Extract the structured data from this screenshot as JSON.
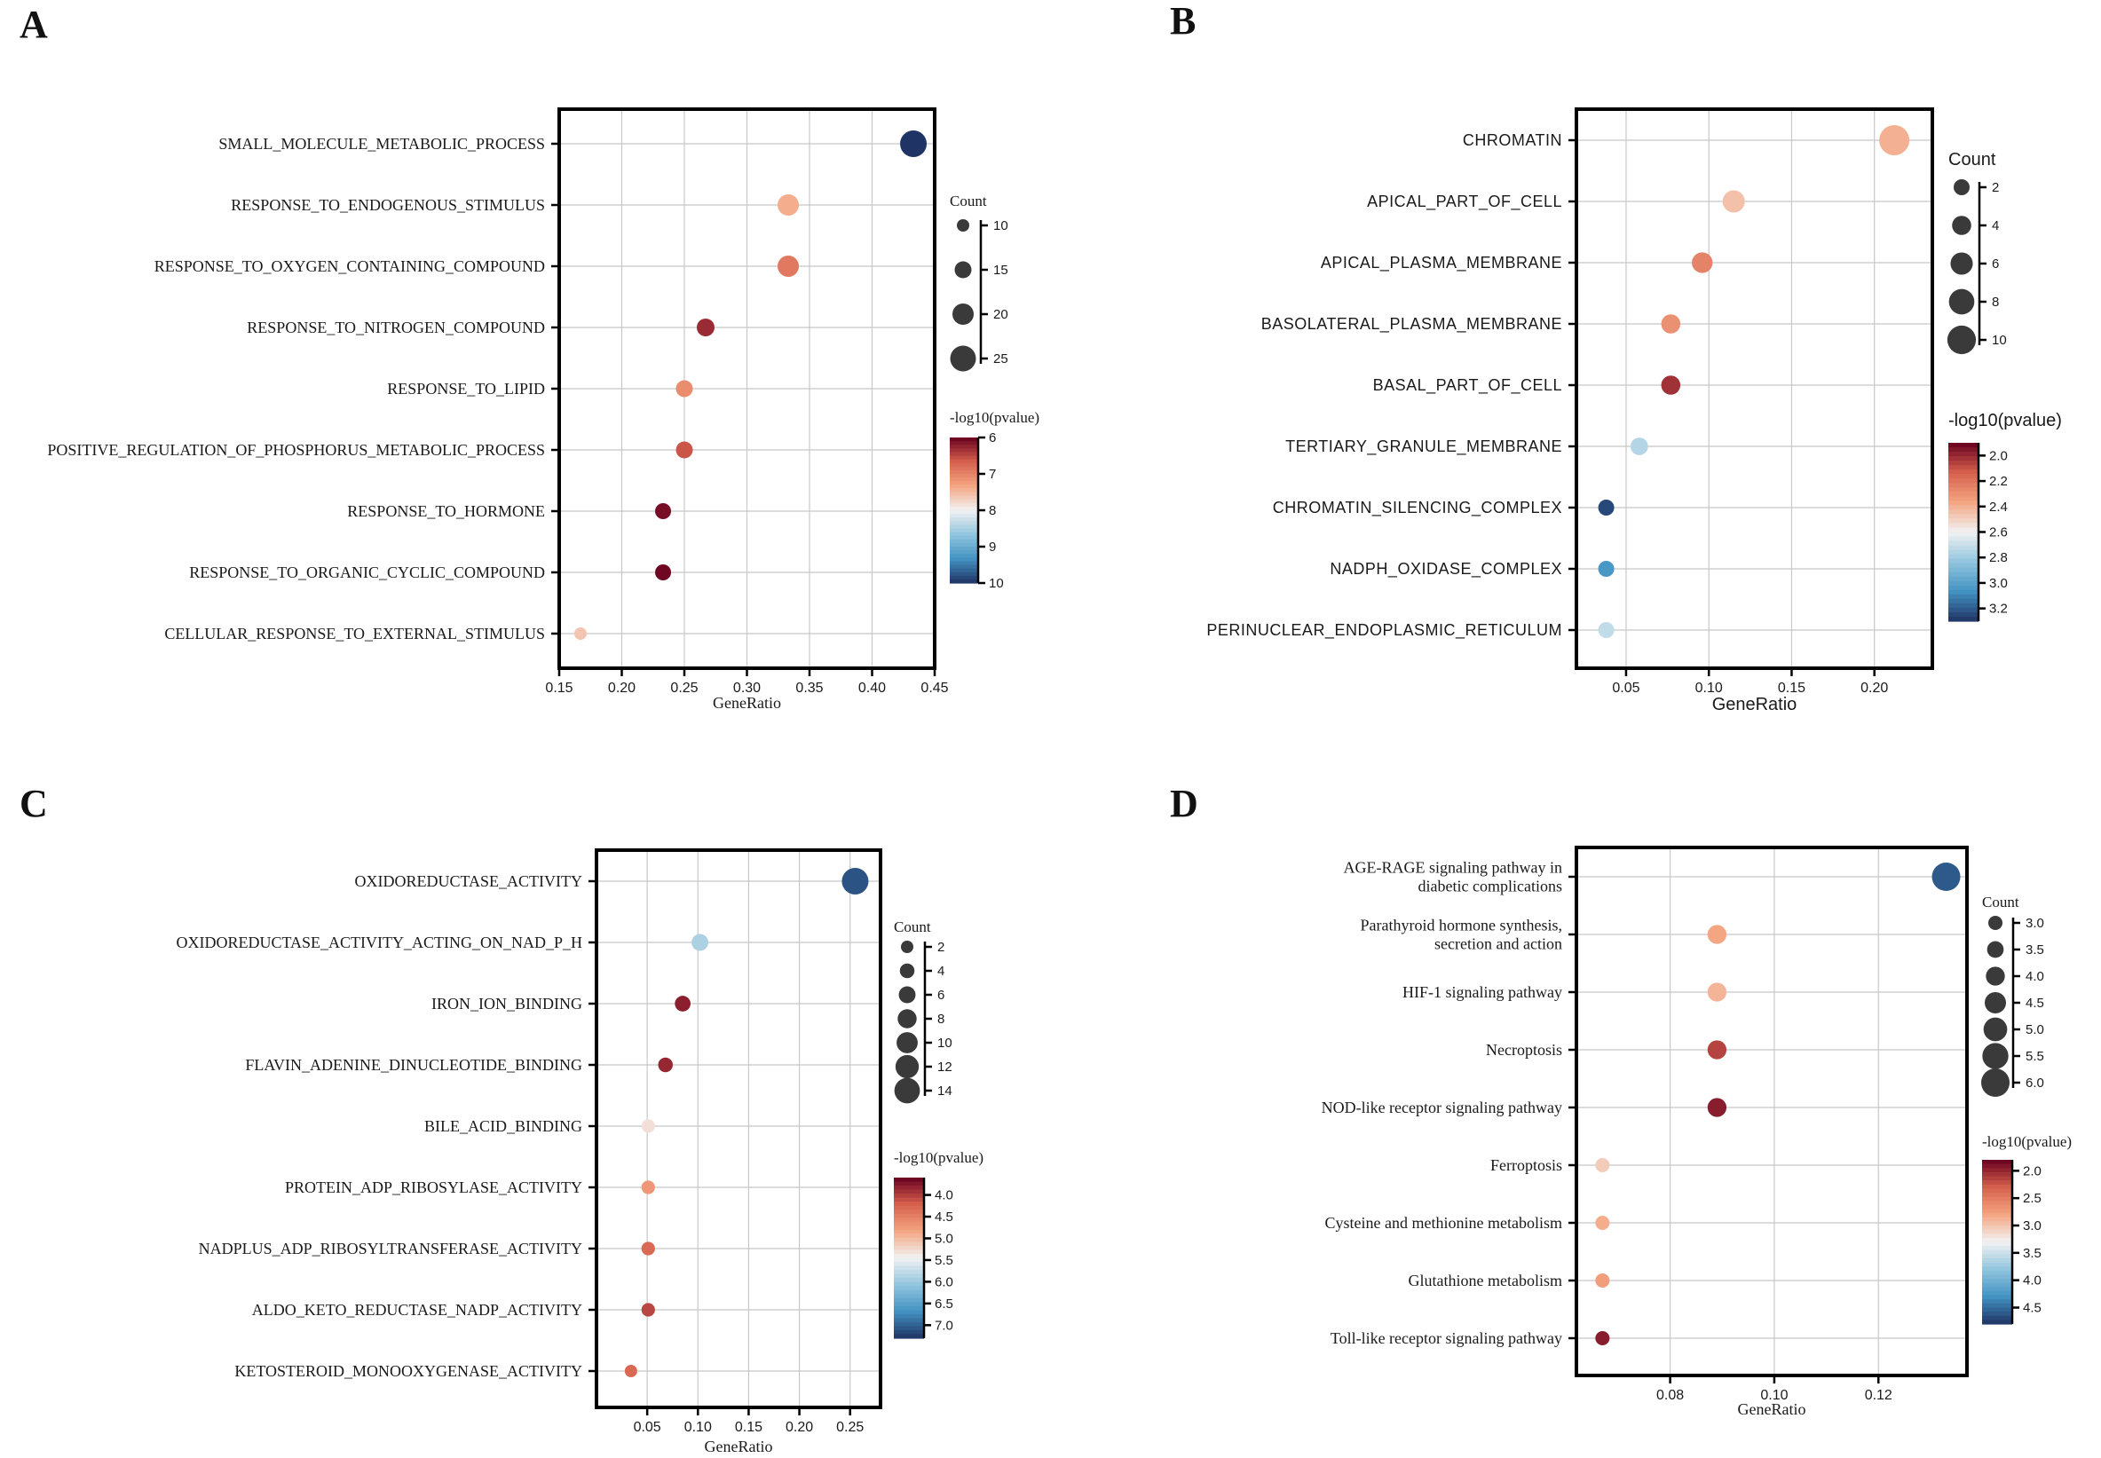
{
  "figure": {
    "panel_labels": [
      "A",
      "B",
      "C",
      "D"
    ]
  },
  "chart_data": [
    {
      "panel": "A",
      "type": "scatter",
      "title": "",
      "xlabel": "GeneRatio",
      "ylabel": "",
      "xlim": [
        0.15,
        0.45
      ],
      "xticks": [
        0.15,
        0.2,
        0.25,
        0.3,
        0.35,
        0.4,
        0.45
      ],
      "xtick_labels": [
        "0.15",
        "0.20",
        "0.25",
        "0.30",
        "0.35",
        "0.40",
        "0.45"
      ],
      "categories": [
        "SMALL_MOLECULE_METABOLIC_PROCESS",
        "RESPONSE_TO_ENDOGENOUS_STIMULUS",
        "RESPONSE_TO_OXYGEN_CONTAINING_COMPOUND",
        "RESPONSE_TO_NITROGEN_COMPOUND",
        "RESPONSE_TO_LIPID",
        "POSITIVE_REGULATION_OF_PHOSPHORUS_METABOLIC_PROCESS",
        "RESPONSE_TO_HORMONE",
        "RESPONSE_TO_ORGANIC_CYCLIC_COMPOUND",
        "CELLULAR_RESPONSE_TO_EXTERNAL_STIMULUS"
      ],
      "gene_ratio": [
        0.433,
        0.333,
        0.333,
        0.267,
        0.25,
        0.25,
        0.233,
        0.233,
        0.167
      ],
      "count": [
        26,
        20,
        20,
        16,
        15,
        15,
        14,
        14,
        10
      ],
      "neg_log10_pvalue": [
        10.2,
        7.4,
        6.9,
        6.3,
        7.1,
        6.6,
        6.1,
        6.05,
        7.6
      ],
      "size_legend": {
        "title": "Count",
        "values": [
          10,
          15,
          20,
          25
        ],
        "labels": [
          "10",
          "15",
          "20",
          "25"
        ]
      },
      "color_legend": {
        "title": "-log10(pvalue)",
        "min": 6,
        "max": 10,
        "ticks": [
          6,
          7,
          8,
          9,
          10
        ],
        "labels": [
          "6",
          "7",
          "8",
          "9",
          "10"
        ]
      }
    },
    {
      "panel": "B",
      "type": "scatter",
      "title": "",
      "xlabel": "GeneRatio",
      "ylabel": "",
      "xlim": [
        0.02,
        0.235
      ],
      "xticks": [
        0.05,
        0.1,
        0.15,
        0.2
      ],
      "xtick_labels": [
        "0.05",
        "0.10",
        "0.15",
        "0.20"
      ],
      "categories": [
        "CHROMATIN",
        "APICAL_PART_OF_CELL",
        "APICAL_PLASMA_MEMBRANE",
        "BASOLATERAL_PLASMA_MEMBRANE",
        "BASAL_PART_OF_CELL",
        "TERTIARY_GRANULE_MEMBRANE",
        "CHROMATIN_SILENCING_COMPLEX",
        "NADPH_OXIDASE_COMPLEX",
        "PERINUCLEAR_ENDOPLASMIC_RETICULUM"
      ],
      "gene_ratio": [
        0.212,
        0.115,
        0.096,
        0.077,
        0.077,
        0.058,
        0.038,
        0.038,
        0.038
      ],
      "count": [
        11,
        6,
        5,
        4,
        4,
        3,
        2,
        2,
        2
      ],
      "neg_log10_pvalue": [
        2.4,
        2.45,
        2.25,
        2.3,
        2.02,
        2.75,
        3.25,
        3.05,
        2.72
      ],
      "size_legend": {
        "title": "Count",
        "values": [
          2,
          4,
          6,
          8,
          10
        ],
        "labels": [
          "2",
          "4",
          "6",
          "8",
          "10"
        ]
      },
      "color_legend": {
        "title": "-log10(pvalue)",
        "min": 1.9,
        "max": 3.3,
        "ticks": [
          2.0,
          2.2,
          2.4,
          2.6,
          2.8,
          3.0,
          3.2
        ],
        "labels": [
          "2.0",
          "2.2",
          "2.4",
          "2.6",
          "2.8",
          "3.0",
          "3.2"
        ]
      }
    },
    {
      "panel": "C",
      "type": "scatter",
      "title": "",
      "xlabel": "GeneRatio",
      "ylabel": "",
      "xlim": [
        0.0,
        0.28
      ],
      "xticks": [
        0.05,
        0.1,
        0.15,
        0.2,
        0.25
      ],
      "xtick_labels": [
        "0.05",
        "0.10",
        "0.15",
        "0.20",
        "0.25"
      ],
      "categories": [
        "OXIDOREDUCTASE_ACTIVITY",
        "OXIDOREDUCTASE_ACTIVITY_ACTING_ON_NAD_P_H",
        "IRON_ION_BINDING",
        "FLAVIN_ADENINE_DINUCLEOTIDE_BINDING",
        "BILE_ACID_BINDING",
        "PROTEIN_ADP_RIBOSYLASE_ACTIVITY",
        "NADPLUS_ADP_RIBOSYLTRANSFERASE_ACTIVITY",
        "ALDO_KETO_REDUCTASE_NADP_ACTIVITY",
        "KETOSTEROID_MONOOXYGENASE_ACTIVITY"
      ],
      "gene_ratio": [
        0.255,
        0.102,
        0.085,
        0.068,
        0.051,
        0.051,
        0.051,
        0.051,
        0.034
      ],
      "count": [
        15,
        6,
        5,
        4,
        3,
        3,
        3,
        3,
        2
      ],
      "neg_log10_pvalue": [
        7.1,
        5.9,
        3.8,
        3.85,
        5.3,
        4.7,
        4.3,
        4.05,
        4.3
      ],
      "size_legend": {
        "title": "Count",
        "values": [
          2,
          4,
          6,
          8,
          10,
          12,
          14
        ],
        "labels": [
          "2",
          "4",
          "6",
          "8",
          "10",
          "12",
          "14"
        ]
      },
      "color_legend": {
        "title": "-log10(pvalue)",
        "min": 3.6,
        "max": 7.3,
        "ticks": [
          4.0,
          4.5,
          5.0,
          5.5,
          6.0,
          6.5,
          7.0
        ],
        "labels": [
          "4.0",
          "4.5",
          "5.0",
          "5.5",
          "6.0",
          "6.5",
          "7.0"
        ]
      }
    },
    {
      "panel": "D",
      "type": "scatter",
      "title": "",
      "xlabel": "GeneRatio",
      "ylabel": "",
      "xlim": [
        0.062,
        0.137
      ],
      "xticks": [
        0.08,
        0.1,
        0.12
      ],
      "xtick_labels": [
        "0.08",
        "0.10",
        "0.12"
      ],
      "categories": [
        [
          "AGE-RAGE signaling pathway in",
          "diabetic complications"
        ],
        [
          "Parathyroid hormone synthesis,",
          "secretion and action"
        ],
        [
          "HIF-1 signaling pathway"
        ],
        [
          "Necroptosis"
        ],
        [
          "NOD-like receptor signaling pathway"
        ],
        [
          "Ferroptosis"
        ],
        [
          "Cysteine and methionine metabolism"
        ],
        [
          "Glutathione metabolism"
        ],
        [
          "Toll-like receptor signaling pathway"
        ]
      ],
      "gene_ratio": [
        0.133,
        0.089,
        0.089,
        0.089,
        0.089,
        0.067,
        0.067,
        0.067,
        0.067
      ],
      "count": [
        6,
        4,
        4,
        4,
        4,
        3,
        3,
        3,
        3
      ],
      "neg_log10_pvalue": [
        4.6,
        2.8,
        2.9,
        2.15,
        1.95,
        3.05,
        2.85,
        2.75,
        1.95
      ],
      "size_legend": {
        "title": "Count",
        "values": [
          3.0,
          3.5,
          4.0,
          4.5,
          5.0,
          5.5,
          6.0
        ],
        "labels": [
          "3.0",
          "3.5",
          "4.0",
          "4.5",
          "5.0",
          "5.5",
          "6.0"
        ]
      },
      "color_legend": {
        "title": "-log10(pvalue)",
        "min": 1.8,
        "max": 4.8,
        "ticks": [
          2.0,
          2.5,
          3.0,
          3.5,
          4.0,
          4.5
        ],
        "labels": [
          "2.0",
          "2.5",
          "3.0",
          "3.5",
          "4.0",
          "4.5"
        ]
      }
    }
  ],
  "colors": {
    "scale_low": "#67001f",
    "scale_mid_red": "#d6604d",
    "scale_light_red": "#f4a582",
    "scale_center": "#f2f2f2",
    "scale_light_blue": "#92c5de",
    "scale_mid_blue": "#4393c3",
    "scale_high": "#1f3464",
    "dot_legend": "#3a3a3a"
  }
}
